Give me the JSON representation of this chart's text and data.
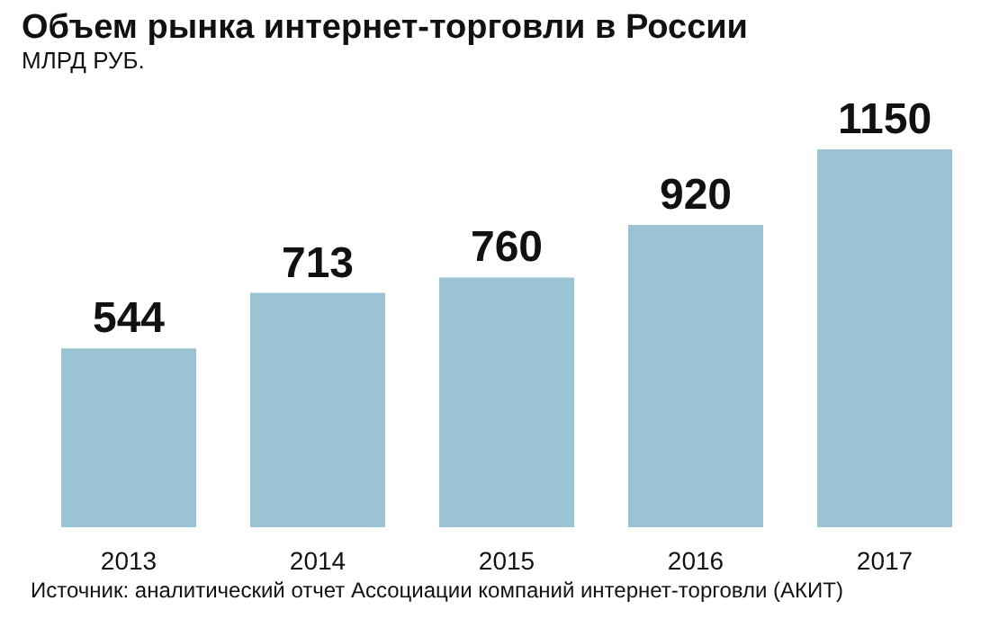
{
  "chart_data": {
    "type": "bar",
    "title": "Объем рынка интернет-торговли в России",
    "subtitle": "МЛРД РУБ.",
    "categories": [
      "2013",
      "2014",
      "2015",
      "2016",
      "2017"
    ],
    "values": [
      544,
      713,
      760,
      920,
      1150
    ],
    "color": "#9ac4d3",
    "data_labels": true,
    "annotations": [
      "Источник: аналитический отчет Ассоциации компаний интернет-торговли (АКИТ)"
    ]
  }
}
